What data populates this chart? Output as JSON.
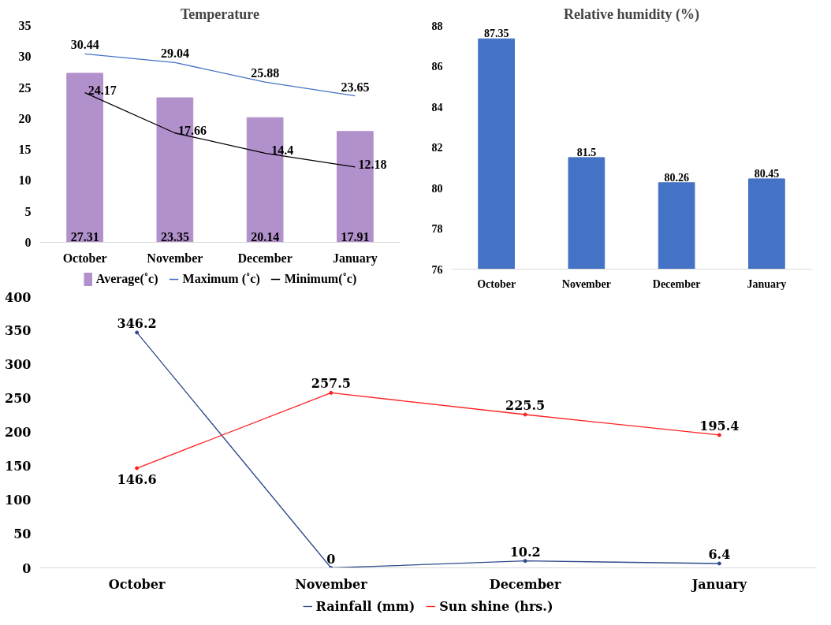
{
  "chart_data": [
    {
      "type": "bar",
      "title": "Temperature",
      "categories": [
        "October",
        "November",
        "December",
        "January"
      ],
      "series": [
        {
          "name": "Average(˚c)",
          "type": "bar",
          "color": "#b290cc",
          "values": [
            27.31,
            23.35,
            20.14,
            17.91
          ]
        },
        {
          "name": "Maximum (˚c)",
          "type": "line",
          "color": "#4472c4",
          "values": [
            30.44,
            29.04,
            25.88,
            23.65
          ]
        },
        {
          "name": "Minimum(˚c)",
          "type": "line",
          "color": "#000000",
          "values": [
            24.17,
            17.66,
            14.4,
            12.18
          ]
        }
      ],
      "ylim": [
        0,
        35
      ],
      "yticks": [
        0,
        5,
        10,
        15,
        20,
        25,
        30,
        35
      ],
      "data_labels": true,
      "grid": false,
      "legend": "bottom"
    },
    {
      "type": "bar",
      "title": "Relative humidity (%)",
      "categories": [
        "October",
        "November",
        "December",
        "January"
      ],
      "values": [
        87.35,
        81.5,
        80.26,
        80.45
      ],
      "color": "#4472c4",
      "ylim": [
        76,
        88
      ],
      "yticks": [
        76,
        78,
        80,
        82,
        84,
        86,
        88
      ],
      "data_labels": true,
      "grid": false
    },
    {
      "type": "line",
      "categories": [
        "October",
        "November",
        "December",
        "January"
      ],
      "series": [
        {
          "name": "Rainfall (mm)",
          "color": "#2f4b8c",
          "values": [
            346.2,
            0,
            10.2,
            6.4
          ]
        },
        {
          "name": "Sun shine (hrs.)",
          "color": "#ff2020",
          "values": [
            146.6,
            257.5,
            225.5,
            195.4
          ]
        }
      ],
      "ylim": [
        0,
        400
      ],
      "yticks": [
        0,
        50,
        100,
        150,
        200,
        250,
        300,
        350,
        400
      ],
      "data_labels": true,
      "grid": false,
      "legend": "bottom",
      "marker": "circle"
    }
  ]
}
